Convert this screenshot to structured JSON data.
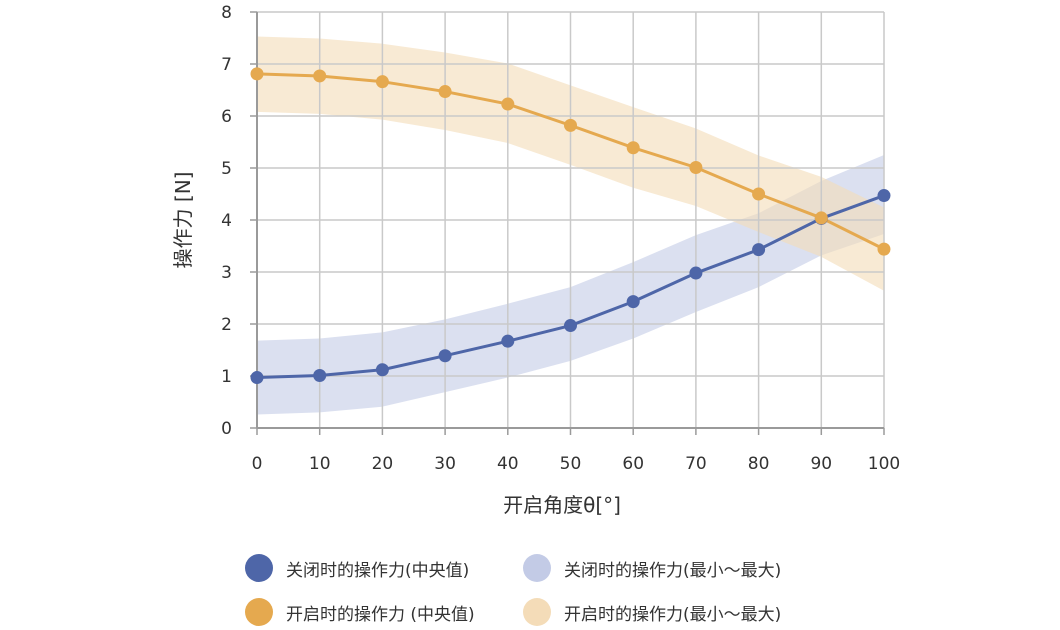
{
  "chart_data": {
    "type": "line",
    "x": [
      0,
      10,
      20,
      30,
      40,
      50,
      60,
      70,
      80,
      90,
      100
    ],
    "xlabel": "开启角度θ[°]",
    "ylabel": "操作力 [N]",
    "xlim": [
      0,
      100
    ],
    "ylim": [
      0,
      8
    ],
    "xticks": [
      "0",
      "10",
      "20",
      "30",
      "40",
      "50",
      "60",
      "70",
      "80",
      "90",
      "100"
    ],
    "yticks": [
      "0",
      "1",
      "2",
      "3",
      "4",
      "5",
      "6",
      "7",
      "8"
    ],
    "grid": true,
    "legend_position": "bottom",
    "series": [
      {
        "name": "关闭时的操作力(中央值)",
        "color": "#4e66a8",
        "values": [
          0.97,
          1.01,
          1.12,
          1.39,
          1.67,
          1.97,
          2.43,
          2.98,
          3.43,
          4.03,
          4.47
        ]
      },
      {
        "name": "开启时的操作力 (中央值)",
        "color": "#e5a94f",
        "values": [
          6.81,
          6.77,
          6.66,
          6.47,
          6.23,
          5.82,
          5.39,
          5.01,
          4.5,
          4.04,
          3.44
        ]
      }
    ],
    "bands": [
      {
        "name": "关闭时的操作力(最小～最大)",
        "color": "#c3cbe6",
        "min": [
          0.26,
          0.3,
          0.41,
          0.69,
          0.97,
          1.29,
          1.72,
          2.23,
          2.71,
          3.32,
          3.73
        ],
        "max": [
          1.68,
          1.72,
          1.84,
          2.09,
          2.39,
          2.71,
          3.19,
          3.71,
          4.13,
          4.75,
          5.25
        ]
      },
      {
        "name": "开启时的操作力(最小～最大)",
        "color": "#f4dcb8",
        "min": [
          6.08,
          6.04,
          5.93,
          5.73,
          5.48,
          5.06,
          4.62,
          4.27,
          3.77,
          3.29,
          2.64
        ],
        "max": [
          7.53,
          7.49,
          7.39,
          7.22,
          7.01,
          6.59,
          6.17,
          5.76,
          5.24,
          4.83,
          4.24
        ]
      }
    ]
  }
}
